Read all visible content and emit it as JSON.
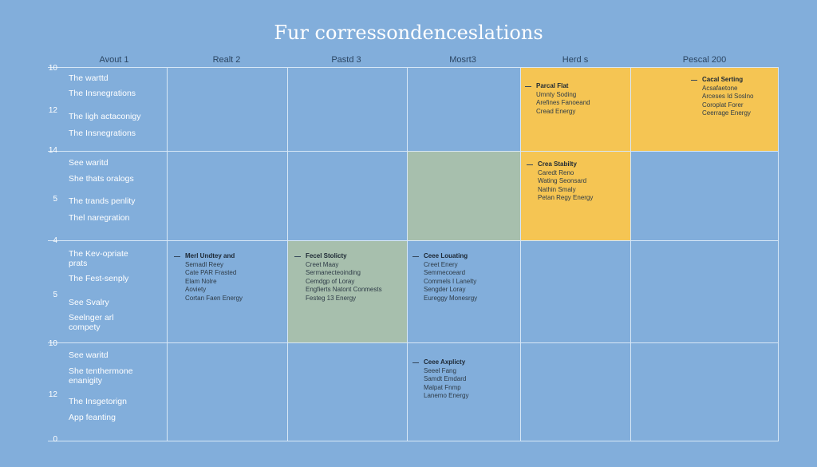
{
  "title": "Fur corressondenceslations",
  "columns": [
    {
      "label": "Avout 1"
    },
    {
      "label": "Realt 2"
    },
    {
      "label": "Pastd 3"
    },
    {
      "label": "Mosrt3"
    },
    {
      "label": "Herd s"
    },
    {
      "label": "Pescal 200"
    }
  ],
  "axis_numbers": [
    "10",
    "12",
    "14",
    "5",
    "4",
    "5",
    "10",
    "12",
    "0"
  ],
  "row_labels": [
    "The warttd",
    "The Insnegrations",
    "The ligh actaconigy",
    "The Insnegrations",
    "See waritd",
    "She thats oralogs",
    "The trands penlity",
    "Thel naregration",
    "The Kev-opriate prats",
    "The Fest-senply",
    "See Svalry",
    "Seelnger arl compety",
    "See waritd",
    "She tenthermone enanigity",
    "The Insgetorign",
    "App feanting"
  ],
  "cards": [
    {
      "title": "Parcal Flat",
      "lines": [
        "Umnty Soding",
        "Arefines Fanoeand",
        "Cread Energy"
      ]
    },
    {
      "title": "Cacal Serting",
      "lines": [
        "Acsafaetone",
        "Arceses Id Soslno",
        "Coroplat Forer",
        "Ceerrage Energy"
      ]
    },
    {
      "title": "Crea Stabilty",
      "lines": [
        "Caredt Reno",
        "Wating Seonsard",
        "Nathin Smaly",
        "Petan Regy Energy"
      ]
    },
    {
      "title": "Merl Undtey and",
      "lines": [
        "Semadl Reey",
        "Cate PAR Frasted",
        "Elam Nolre",
        "Aoviety",
        "Cortan Faen Energy"
      ]
    },
    {
      "title": "Fecel Stolicty",
      "lines": [
        "Creet Maay",
        "Sermanecteoinding",
        "Cemdgp of Loray",
        "Engfierts Natont Conmests",
        "Festeg 13 Energy"
      ]
    },
    {
      "title": "Ceee Louating",
      "lines": [
        "Creet Enery",
        "Semmecoeard",
        "Commels I Lanelty",
        "Sengder Loray",
        "Eureggy Monesrgy"
      ]
    },
    {
      "title": "Ceee Axplicty",
      "lines": [
        "Seeel Fang",
        "Samdt Emdard",
        "Malpat Fnmp",
        "Lanemo Energy"
      ]
    }
  ]
}
